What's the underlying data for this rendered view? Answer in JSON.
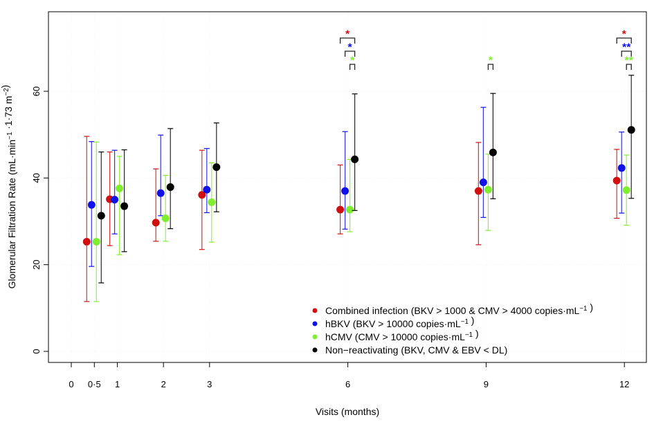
{
  "chart_data": {
    "type": "scatter",
    "subtype": "mean-with-error-bars",
    "xlabel": "Visits (months)",
    "ylabel": {
      "parts": [
        {
          "t": "Glomerular Filtration Rate (mL·min"
        },
        {
          "sup": "−1"
        },
        {
          "t": " ·1·73 m"
        },
        {
          "sup": "−2"
        },
        {
          "t": ")"
        }
      ]
    },
    "x_ticks": [
      0,
      0.5,
      1,
      2,
      3,
      6,
      9,
      12
    ],
    "x_tick_labels": [
      "0",
      "0·5",
      "1",
      "2",
      "3",
      "6",
      "9",
      "12"
    ],
    "y_ticks": [
      0,
      20,
      40,
      60
    ],
    "y_tick_labels": [
      "0",
      "20",
      "40",
      "60"
    ],
    "xlim": [
      -0.5,
      12.5
    ],
    "ylim": [
      -2.5,
      78
    ],
    "grid": true,
    "legend_position": "bottom-right",
    "series": [
      {
        "name": "Combined infection",
        "color": "#d01010",
        "legend": [
          {
            "t": "Combined infection (BKV > 1000 & CMV > 4000 copies·mL"
          },
          {
            "sup": "−1"
          },
          {
            "t": " )"
          }
        ],
        "x": [
          0.5,
          1,
          2,
          3,
          6,
          9,
          12
        ],
        "mean": [
          25.3,
          35.1,
          29.7,
          36.1,
          32.7,
          37.0,
          39.4
        ],
        "lower": [
          11.5,
          24.4,
          25.4,
          23.5,
          27.1,
          24.6,
          30.7
        ],
        "upper": [
          49.6,
          46.0,
          42.1,
          46.4,
          43.0,
          48.2,
          46.6
        ]
      },
      {
        "name": "hBKV",
        "color": "#1010e8",
        "legend": [
          {
            "t": "hBKV (BKV > 10000 copies·mL"
          },
          {
            "sup": "−1"
          },
          {
            "t": " )"
          }
        ],
        "x": [
          0.5,
          1,
          2,
          3,
          6,
          9,
          12
        ],
        "mean": [
          33.8,
          35.0,
          36.5,
          37.3,
          37.0,
          39.0,
          42.3
        ],
        "lower": [
          19.6,
          27.1,
          31.3,
          32.0,
          28.2,
          30.9,
          31.9
        ],
        "upper": [
          48.4,
          46.4,
          49.9,
          46.8,
          50.7,
          56.3,
          50.6
        ]
      },
      {
        "name": "hCMV",
        "color": "#80ee30",
        "legend": [
          {
            "t": "hCMV (CMV > 10000 copies·mL"
          },
          {
            "sup": "−1"
          },
          {
            "t": " )"
          }
        ],
        "x": [
          0.5,
          1,
          2,
          3,
          6,
          9,
          12
        ],
        "mean": [
          25.3,
          37.6,
          30.7,
          34.4,
          32.7,
          37.3,
          37.2
        ],
        "lower": [
          11.5,
          22.3,
          25.4,
          25.2,
          27.6,
          27.9,
          29.1
        ],
        "upper": [
          48.3,
          45.0,
          40.6,
          43.5,
          44.3,
          45.5,
          45.3
        ]
      },
      {
        "name": "Non-reactivating",
        "color": "#000000",
        "legend": [
          {
            "t": "Non−reactivating (BKV, CMV & EBV <  DL)"
          }
        ],
        "x": [
          0.5,
          1,
          2,
          3,
          6,
          9,
          12
        ],
        "mean": [
          31.3,
          33.5,
          37.9,
          42.5,
          44.3,
          45.9,
          51.1
        ],
        "lower": [
          15.8,
          23.0,
          28.3,
          32.2,
          32.5,
          35.2,
          35.3
        ],
        "upper": [
          46.0,
          46.5,
          51.4,
          52.7,
          59.4,
          59.5,
          63.7
        ]
      }
    ],
    "annotations": [
      {
        "visit": 6,
        "series": 0,
        "label": "*"
      },
      {
        "visit": 6,
        "series": 1,
        "label": "*"
      },
      {
        "visit": 6,
        "series": 2,
        "label": "*"
      },
      {
        "visit": 9,
        "series": 2,
        "label": "*"
      },
      {
        "visit": 12,
        "series": 0,
        "label": "*"
      },
      {
        "visit": 12,
        "series": 1,
        "label": "**"
      },
      {
        "visit": 12,
        "series": 2,
        "label": "**"
      }
    ]
  }
}
